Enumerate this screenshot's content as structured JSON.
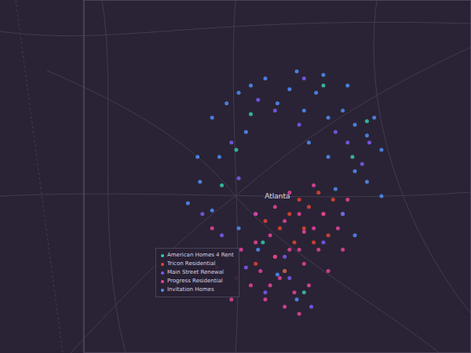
{
  "chart_data": {
    "type": "scatter",
    "xlim": [
      -85.19,
      -83.59
    ],
    "ylim": [
      33.31,
      34.3
    ],
    "tick_labels": false,
    "legend": "left",
    "annotations": [
      {
        "text": "Atlanta",
        "x": -84.39,
        "y": 33.75
      }
    ],
    "series": [
      {
        "name": "American Homes 4 Rent",
        "color": "#37c8a8",
        "x": [
          -84.5,
          -84.2,
          -84.08,
          -84.62,
          -84.36,
          -84.28,
          -84.45,
          -84.12,
          -84.56,
          -84.02
        ],
        "y": [
          33.98,
          34.06,
          33.86,
          33.78,
          33.54,
          33.48,
          33.62,
          33.7,
          33.88,
          33.96
        ]
      },
      {
        "name": "Tricon Residential",
        "color": "#e3452f",
        "x": [
          -84.3,
          -84.26,
          -84.22,
          -84.34,
          -84.38,
          -84.28,
          -84.2,
          -84.16,
          -84.44,
          -84.32,
          -84.24,
          -84.4,
          -84.36,
          -84.18,
          -84.48
        ],
        "y": [
          33.74,
          33.72,
          33.76,
          33.7,
          33.66,
          33.66,
          33.7,
          33.74,
          33.68,
          33.62,
          33.62,
          33.58,
          33.54,
          33.64,
          33.56
        ]
      },
      {
        "name": "Main Street Renewal",
        "color": "#7b5cf5",
        "x": [
          -84.47,
          -84.28,
          -84.15,
          -84.04,
          -84.58,
          -84.7,
          -84.12,
          -84.36,
          -84.44,
          -84.52,
          -84.2,
          -84.1,
          -84.62,
          -84.3,
          -84.25,
          -84.4,
          -84.55,
          -84.01,
          -84.34,
          -84.48
        ],
        "y": [
          34.02,
          34.08,
          33.93,
          33.84,
          33.9,
          33.7,
          33.7,
          33.58,
          33.48,
          33.55,
          33.62,
          33.9,
          33.64,
          33.95,
          33.44,
          33.99,
          33.8,
          33.9,
          33.52,
          33.7
        ]
      },
      {
        "name": "Progress Residential",
        "color": "#e8449a",
        "x": [
          -84.36,
          -84.3,
          -84.24,
          -84.42,
          -84.48,
          -84.54,
          -84.6,
          -84.4,
          -84.34,
          -84.28,
          -84.22,
          -84.46,
          -84.5,
          -84.38,
          -84.32,
          -84.26,
          -84.18,
          -84.44,
          -84.36,
          -84.3,
          -84.56,
          -84.64,
          -84.2,
          -84.14,
          -84.4,
          -84.34,
          -84.48,
          -84.24,
          -84.12,
          -84.58,
          -84.1,
          -84.66,
          -84.3,
          -84.42,
          -84.28
        ],
        "y": [
          33.68,
          33.7,
          33.66,
          33.64,
          33.62,
          33.6,
          33.58,
          33.58,
          33.6,
          33.56,
          33.6,
          33.54,
          33.5,
          33.52,
          33.48,
          33.5,
          33.54,
          33.46,
          33.44,
          33.42,
          33.52,
          33.55,
          33.7,
          33.66,
          33.72,
          33.76,
          33.7,
          33.78,
          33.6,
          33.46,
          33.74,
          33.66,
          33.6,
          33.5,
          33.65
        ]
      },
      {
        "name": "Invitation Homes",
        "color": "#4f8ef7",
        "x": [
          -84.66,
          -84.6,
          -84.55,
          -84.5,
          -84.44,
          -84.39,
          -84.34,
          -84.28,
          -84.23,
          -84.18,
          -84.12,
          -84.07,
          -84.02,
          -83.96,
          -83.99,
          -84.1,
          -84.2,
          -84.31,
          -84.52,
          -84.63,
          -84.71,
          -84.76,
          -84.66,
          -84.18,
          -84.07,
          -84.26,
          -84.02,
          -83.96,
          -84.39,
          -84.31,
          -84.47,
          -84.07,
          -84.55,
          -84.72,
          -84.15
        ],
        "y": [
          33.97,
          34.01,
          34.04,
          34.06,
          34.08,
          34.01,
          34.05,
          33.99,
          34.04,
          33.97,
          33.99,
          33.95,
          33.92,
          33.88,
          33.97,
          34.06,
          34.09,
          34.1,
          33.93,
          33.86,
          33.79,
          33.73,
          33.71,
          33.86,
          33.82,
          33.9,
          33.79,
          33.75,
          33.53,
          33.46,
          33.6,
          33.64,
          33.66,
          33.86,
          33.77
        ]
      }
    ]
  }
}
